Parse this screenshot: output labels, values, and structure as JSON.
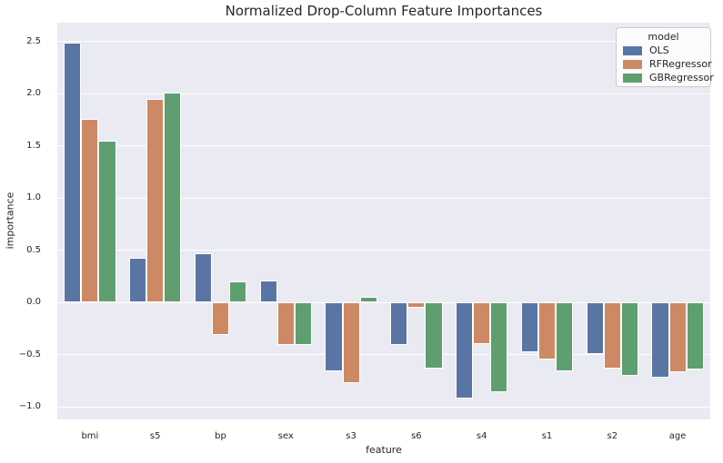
{
  "chart_data": {
    "type": "bar",
    "title": "Normalized Drop-Column Feature Importances",
    "xlabel": "feature",
    "ylabel": "importance",
    "categories": [
      "bmi",
      "s5",
      "bp",
      "sex",
      "s3",
      "s6",
      "s4",
      "s1",
      "s2",
      "age"
    ],
    "series": [
      {
        "name": "OLS",
        "color": "#5975a4",
        "values": [
          2.49,
          0.43,
          0.47,
          0.21,
          -0.66,
          -0.41,
          -0.92,
          -0.48,
          -0.49,
          -0.72
        ]
      },
      {
        "name": "RFRegressor",
        "color": "#cc8963",
        "values": [
          1.76,
          1.95,
          -0.31,
          -0.41,
          -0.77,
          -0.05,
          -0.4,
          -0.55,
          -0.63,
          -0.67
        ]
      },
      {
        "name": "GBRegressor",
        "color": "#5f9e6e",
        "values": [
          1.55,
          2.01,
          0.2,
          -0.41,
          0.05,
          -0.63,
          -0.86,
          -0.66,
          -0.7,
          -0.64
        ]
      }
    ],
    "y_ticks": [
      2.5,
      2.0,
      1.5,
      1.0,
      0.5,
      0.0,
      -0.5,
      -1.0
    ],
    "ylim": [
      -1.12,
      2.68
    ],
    "legend": {
      "title": "model",
      "position": "upper right"
    },
    "grid": true,
    "style": {
      "plot_background": "#eaeaf2",
      "grid_color": "#ffffff",
      "text_color": "#262626",
      "figure_background": "#ffffff"
    }
  }
}
